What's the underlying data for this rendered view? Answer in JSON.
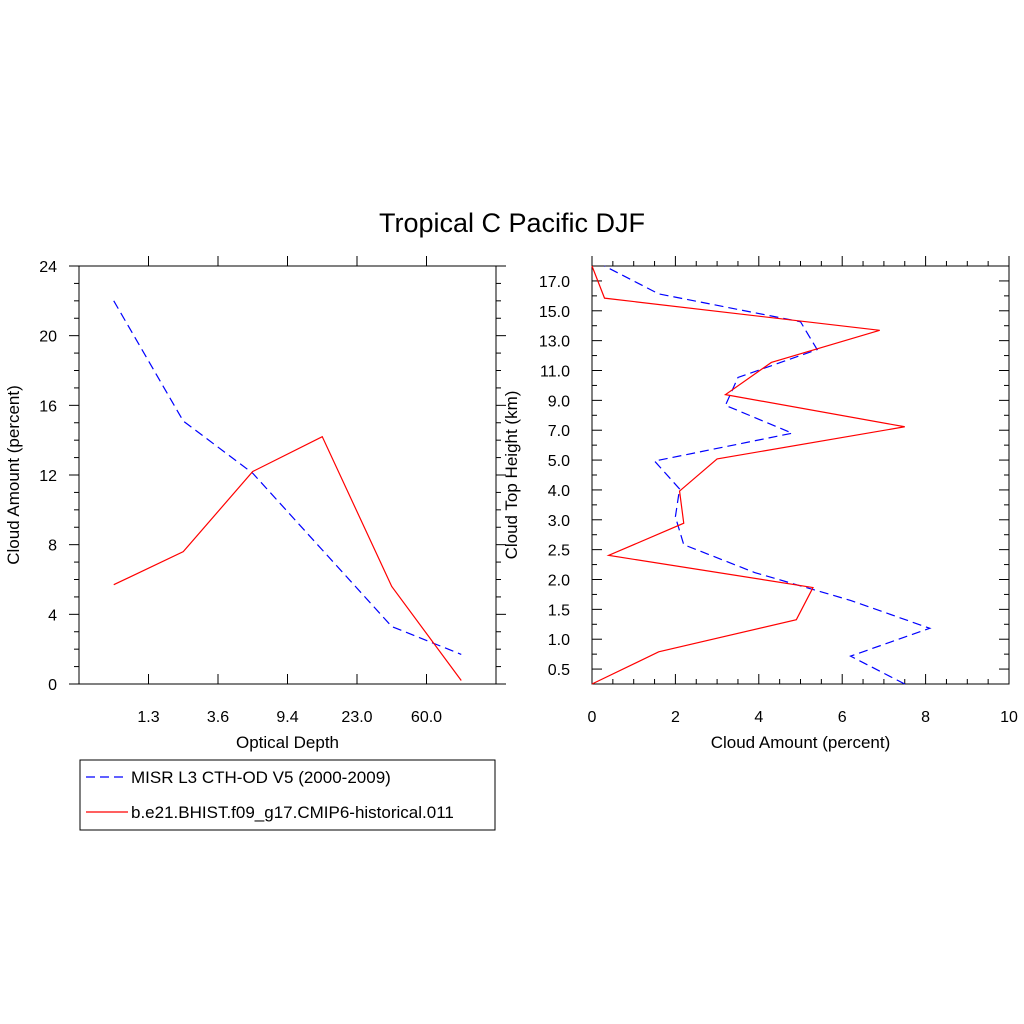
{
  "chart_data": {
    "title": "Tropical C Pacific DJF",
    "legend": {
      "placement": "bottom-left",
      "entries": [
        {
          "name": "MISR L3 CTH-OD V5 (2000-2009)",
          "color": "#0000ff",
          "style": "dashed"
        },
        {
          "name": "b.e21.BHIST.f09_g17.CMIP6-historical.011",
          "color": "#ff0000",
          "style": "solid"
        }
      ]
    },
    "panels": [
      {
        "type": "line",
        "xlabel": "Optical Depth",
        "ylabel": "Cloud Amount (percent)",
        "x_tick_labels": [
          "1.3",
          "3.6",
          "9.4",
          "23.0",
          "60.0"
        ],
        "y_ticks": [
          "0",
          "4",
          "8",
          "12",
          "16",
          "20",
          "24"
        ],
        "ylim": [
          0,
          24
        ],
        "x": [
          0.5,
          1.5,
          2.5,
          3.5,
          4.5,
          5.5
        ],
        "series": [
          {
            "name": "MISR L3 CTH-OD V5 (2000-2009)",
            "color": "#0000ff",
            "style": "dashed",
            "values": [
              22.0,
              15.1,
              12.1,
              7.7,
              3.3,
              1.7
            ]
          },
          {
            "name": "b.e21.BHIST.f09_g17.CMIP6-historical.011",
            "color": "#ff0000",
            "style": "solid",
            "values": [
              5.7,
              7.6,
              12.2,
              14.2,
              5.6,
              0.2
            ]
          }
        ]
      },
      {
        "type": "line",
        "xlabel": "Cloud Amount (percent)",
        "ylabel": "Cloud Top Height (km)",
        "x_ticks": [
          "0",
          "2",
          "4",
          "6",
          "8",
          "10"
        ],
        "xlim": [
          0,
          10
        ],
        "y_tick_labels": [
          "0.5",
          "1.0",
          "1.5",
          "2.0",
          "2.5",
          "3.0",
          "4.0",
          "5.0",
          "7.0",
          "9.0",
          "11.0",
          "13.0",
          "15.0",
          "17.0"
        ],
        "y_levels": [
          0,
          0.5,
          1,
          1.5,
          2,
          2.5,
          3,
          3.5,
          4,
          4.5,
          5,
          5.5,
          6,
          6.5,
          7,
          7.5,
          8,
          8.5,
          9,
          9.5,
          10,
          10.5,
          11,
          11.5,
          12,
          12.5,
          13,
          13.5,
          14
        ],
        "series": [
          {
            "name": "MISR L3 CTH-OD V5 (2000-2009)",
            "color": "#0000ff",
            "style": "dashed",
            "values": [
              7.5,
              6.2,
              8.1,
              6.2,
              3.9,
              2.2,
              2.0,
              2.1,
              1.5,
              4.8,
              3.2,
              3.5,
              5.4,
              5.0,
              1.6,
              0.3
            ]
          },
          {
            "name": "b.e21.BHIST.f09_g17.CMIP6-historical.011",
            "color": "#ff0000",
            "style": "solid",
            "values": [
              0.0,
              1.6,
              4.9,
              5.3,
              0.4,
              2.2,
              2.1,
              3.0,
              7.5,
              3.2,
              4.3,
              6.9,
              0.3,
              0.0
            ]
          }
        ]
      }
    ]
  }
}
